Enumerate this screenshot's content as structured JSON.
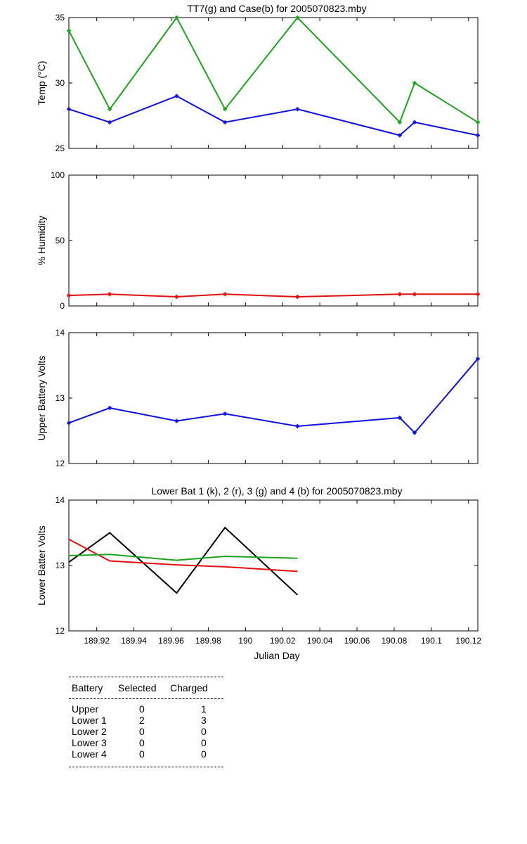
{
  "chart_data": [
    {
      "type": "line",
      "title": "TT7(g) and Case(b) for 2005070823.mby",
      "ylabel": "Temp  (°C)",
      "xlim": [
        189.905,
        190.125
      ],
      "ylim": [
        25,
        35
      ],
      "yticks": [
        25,
        30,
        35
      ],
      "series": [
        {
          "color": "#1fa31f",
          "markers": true,
          "x": [
            189.905,
            189.927,
            189.963,
            189.989,
            190.028,
            190.083,
            190.091,
            190.125
          ],
          "y": [
            34,
            28,
            35,
            28,
            35,
            27,
            30,
            27
          ]
        },
        {
          "color": "#1010e0",
          "markers": true,
          "x": [
            189.905,
            189.927,
            189.963,
            189.989,
            190.028,
            190.083,
            190.091,
            190.125
          ],
          "y": [
            28,
            27,
            29,
            27,
            28,
            26,
            27,
            26
          ]
        }
      ]
    },
    {
      "type": "line",
      "title": "",
      "ylabel": "% Humidity",
      "xlim": [
        189.905,
        190.125
      ],
      "ylim": [
        0,
        100
      ],
      "yticks": [
        0,
        50,
        100
      ],
      "series": [
        {
          "color": "#e01010",
          "markers": true,
          "x": [
            189.905,
            189.927,
            189.963,
            189.989,
            190.028,
            190.083,
            190.091,
            190.125
          ],
          "y": [
            8,
            9,
            7,
            9,
            7,
            9,
            9,
            9
          ]
        }
      ]
    },
    {
      "type": "line",
      "title": "",
      "ylabel": "Upper Battery Volts",
      "xlim": [
        189.905,
        190.125
      ],
      "ylim": [
        12,
        14
      ],
      "yticks": [
        12,
        13,
        14
      ],
      "series": [
        {
          "color": "#1010e0",
          "markers": true,
          "x": [
            189.905,
            189.927,
            189.963,
            189.989,
            190.028,
            190.083,
            190.091,
            190.125
          ],
          "y": [
            12.62,
            12.85,
            12.65,
            12.76,
            12.57,
            12.7,
            12.47,
            13.6
          ]
        }
      ]
    },
    {
      "type": "line",
      "title": "Lower Bat 1 (k), 2 (r), 3 (g) and 4 (b) for 2005070823.mby",
      "ylabel": "Lower Batter Volts",
      "xlabel": "Julian Day",
      "xlim": [
        189.905,
        190.125
      ],
      "ylim": [
        12,
        14
      ],
      "yticks": [
        12,
        13,
        14
      ],
      "xticks": [
        189.92,
        189.94,
        189.96,
        189.98,
        190,
        190.02,
        190.04,
        190.06,
        190.08,
        190.1,
        190.12
      ],
      "xticklabels": [
        "189.92",
        "189.94",
        "189.96",
        "189.98",
        "190",
        "190.02",
        "190.04",
        "190.06",
        "190.08",
        "190.1",
        "190.12"
      ],
      "series": [
        {
          "color": "#000000",
          "markers": false,
          "x": [
            189.905,
            189.927,
            189.963,
            189.989,
            190.028
          ],
          "y": [
            13.05,
            13.5,
            12.58,
            13.58,
            12.55
          ]
        },
        {
          "color": "#e01010",
          "markers": false,
          "x": [
            189.905,
            189.927,
            189.963,
            189.989,
            190.028
          ],
          "y": [
            13.4,
            13.07,
            13.01,
            12.98,
            12.91
          ]
        },
        {
          "color": "#1fa31f",
          "markers": false,
          "x": [
            189.905,
            189.927,
            189.963,
            189.989,
            190.028
          ],
          "y": [
            13.15,
            13.17,
            13.08,
            13.14,
            13.11
          ]
        }
      ]
    }
  ],
  "battery_table": {
    "headers": [
      "Battery",
      "Selected",
      "Charged"
    ],
    "rows": [
      {
        "battery": "Upper",
        "selected": "0",
        "charged": "1"
      },
      {
        "battery": "Lower 1",
        "selected": "2",
        "charged": "3"
      },
      {
        "battery": "Lower 2",
        "selected": "0",
        "charged": "0"
      },
      {
        "battery": "Lower 3",
        "selected": "0",
        "charged": "0"
      },
      {
        "battery": "Lower 4",
        "selected": "0",
        "charged": "0"
      }
    ]
  }
}
